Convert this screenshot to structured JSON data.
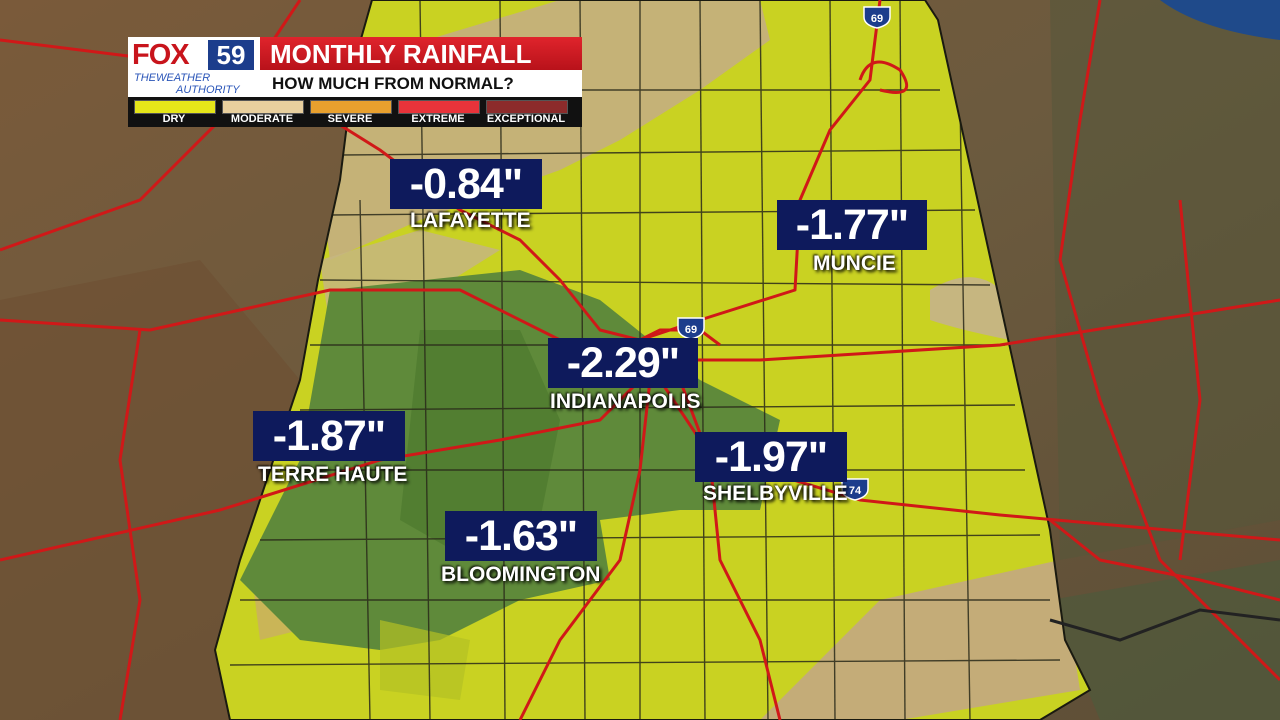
{
  "logo": {
    "brand": "FOX",
    "channel": "59",
    "tagline_line1": "THEWEATHER",
    "tagline_line2": "AUTHORITY"
  },
  "title": "MONTHLY RAINFALL",
  "subtitle": "HOW MUCH FROM NORMAL?",
  "legend": [
    {
      "label": "DRY",
      "color": "#e6e619"
    },
    {
      "label": "MODERATE",
      "color": "#e8cf9e"
    },
    {
      "label": "SEVERE",
      "color": "#e8a02e"
    },
    {
      "label": "EXTREME",
      "color": "#e8333a"
    },
    {
      "label": "EXCEPTIONAL",
      "color": "#8c2b2b"
    }
  ],
  "cities": [
    {
      "name": "LAFAYETTE",
      "value": "-0.84\""
    },
    {
      "name": "MUNCIE",
      "value": "-1.77\""
    },
    {
      "name": "INDIANAPOLIS",
      "value": "-2.29\""
    },
    {
      "name": "TERRE HAUTE",
      "value": "-1.87\""
    },
    {
      "name": "SHELBYVILLE",
      "value": "-1.97\""
    },
    {
      "name": "BLOOMINGTON",
      "value": "-1.63\""
    }
  ],
  "interstates": [
    "69",
    "69",
    "74"
  ],
  "colors": {
    "dry_fill": "#d4d61e",
    "moderate_fill": "#c8b27a",
    "label_box": "#0e1a5c",
    "roads": "#d01818"
  }
}
